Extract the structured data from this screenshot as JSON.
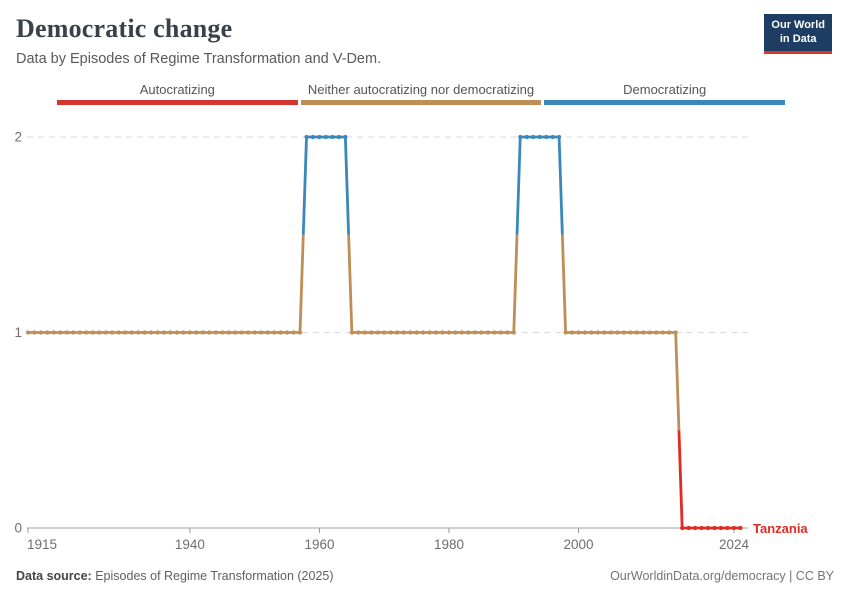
{
  "header": {
    "title": "Democratic change",
    "subtitle": "Data by Episodes of Regime Transformation and V-Dem."
  },
  "logo": {
    "line1": "Our World",
    "line2": "in Data",
    "bg_color": "#1d3d63",
    "accent_color": "#dc352d"
  },
  "legend": {
    "items": [
      {
        "label": "Autocratizing",
        "color": "#d2362e"
      },
      {
        "label": "Neither autocratizing nor democratizing",
        "color": "#bf8e56"
      },
      {
        "label": "Democratizing",
        "color": "#3a87bc"
      }
    ]
  },
  "chart_data": {
    "type": "line",
    "title": "Democratic change",
    "entity": "Tanzania",
    "entity_color": "#e02b22",
    "xlim": [
      1915,
      2025
    ],
    "ylim": [
      0,
      2
    ],
    "x_label_ticks": [
      1915,
      1940,
      1960,
      1980,
      2000,
      2024
    ],
    "y_ticks": [
      0,
      1,
      2
    ],
    "grid": "dashed horizontal at y=1 and y=2, solid axis at y=0",
    "value_meanings": {
      "0": "Autocratizing",
      "1": "Neither autocratizing nor democratizing",
      "2": "Democratizing"
    },
    "value_colors": {
      "0": "#e02b22",
      "1": "#bf8e56",
      "2": "#3a87bc"
    },
    "segments": [
      {
        "start_year": 1915,
        "end_year": 1957,
        "value": 1
      },
      {
        "start_year": 1958,
        "end_year": 1964,
        "value": 2
      },
      {
        "start_year": 1965,
        "end_year": 1990,
        "value": 1
      },
      {
        "start_year": 1991,
        "end_year": 1997,
        "value": 2
      },
      {
        "start_year": 1998,
        "end_year": 2015,
        "value": 1
      },
      {
        "start_year": 2016,
        "end_year": 2025,
        "value": 0
      }
    ]
  },
  "footer": {
    "source_label": "Data source:",
    "source_text": "Episodes of Regime Transformation (2025)",
    "right_text": "OurWorldinData.org/democracy | CC BY"
  }
}
